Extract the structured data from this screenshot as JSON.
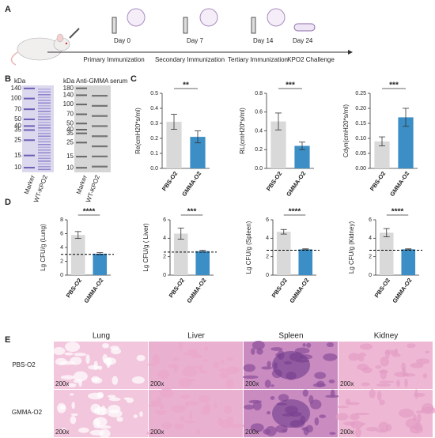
{
  "panel_labels": [
    "A",
    "B",
    "C",
    "D",
    "E"
  ],
  "timeline": {
    "days": [
      "Day 0",
      "Day 7",
      "Day 14",
      "Day 24"
    ],
    "stages": [
      "Primary Immunization",
      "Secondary Immunization",
      "Tertiary  Immunization",
      "KPO2 Challenge"
    ]
  },
  "gel": {
    "left_unit": "kDa",
    "left_markers": [
      140,
      100,
      70,
      50,
      40,
      35,
      25,
      15,
      10
    ],
    "right_title": "Anti-GMMA serum",
    "right_unit": "kDa",
    "right_markers": [
      180,
      140,
      100,
      70,
      50,
      40,
      35,
      25,
      15,
      10
    ],
    "lanes": [
      "Marker",
      "WT-KPO2"
    ]
  },
  "chart_data": [
    {
      "type": "bar",
      "ylabel": "Re(cmH20*s/ml)",
      "categories": [
        "PBS-O2",
        "GMMA-O2"
      ],
      "values": [
        0.31,
        0.21
      ],
      "errors": [
        0.05,
        0.04
      ],
      "colors": [
        "#d9d9d9",
        "#3b8ec6"
      ],
      "ylim": [
        0,
        0.5
      ],
      "yticks": [
        {
          "value": 0,
          "label": "0.0"
        },
        0.1,
        0.2,
        0.3,
        0.4,
        0.5
      ],
      "significance": "**"
    },
    {
      "type": "bar",
      "ylabel": "RL(cmH20*s/ml)",
      "categories": [
        "PBS-O2",
        "GMMA-O2"
      ],
      "values": [
        0.5,
        0.24
      ],
      "errors": [
        0.09,
        0.04
      ],
      "colors": [
        "#d9d9d9",
        "#3b8ec6"
      ],
      "ylim": [
        0,
        0.8
      ],
      "yticks": [
        {
          "value": 0,
          "label": "0.0"
        },
        0.2,
        0.4,
        0.6,
        0.8
      ],
      "significance": "***"
    },
    {
      "type": "bar",
      "ylabel": "Cdyn(cmH20*s/ml)",
      "categories": [
        "PBS-O2",
        "GMMA-O2"
      ],
      "values": [
        0.09,
        0.17
      ],
      "errors": [
        0.015,
        0.03
      ],
      "colors": [
        "#d9d9d9",
        "#3b8ec6"
      ],
      "ylim": [
        0,
        0.25
      ],
      "yticks": [
        {
          "value": 0,
          "label": "0.00"
        },
        0.05,
        {
          "value": 0.1,
          "label": "0.10"
        },
        0.15,
        {
          "value": 0.2,
          "label": "0.20"
        },
        0.25
      ],
      "significance": "***"
    },
    {
      "type": "bar",
      "ylabel": "Lg CFU/g (Lung)",
      "categories": [
        "PBS-O2",
        "GMMA-O2"
      ],
      "values": [
        5.8,
        3.1
      ],
      "errors": [
        0.5,
        0.15
      ],
      "colors": [
        "#d9d9d9",
        "#3b8ec6"
      ],
      "ylim": [
        0,
        8
      ],
      "yticks": [
        0,
        2,
        4,
        6,
        8
      ],
      "significance": "****",
      "threshold": 3
    },
    {
      "type": "bar",
      "ylabel": "Lg CFU/g ( Liver)",
      "categories": [
        "PBS-O2",
        "GMMA-O2"
      ],
      "values": [
        4.5,
        2.6
      ],
      "errors": [
        0.6,
        0.1
      ],
      "colors": [
        "#d9d9d9",
        "#3b8ec6"
      ],
      "ylim": [
        0,
        6
      ],
      "yticks": [
        0,
        2,
        4,
        6
      ],
      "significance": "***",
      "threshold": 2.5
    },
    {
      "type": "bar",
      "ylabel": "Lg CFU/g (Spleen)",
      "categories": [
        "PBS-O2",
        "GMMA-O2"
      ],
      "values": [
        4.7,
        2.8
      ],
      "errors": [
        0.25,
        0.05
      ],
      "colors": [
        "#d9d9d9",
        "#3b8ec6"
      ],
      "ylim": [
        0,
        6
      ],
      "yticks": [
        0,
        2,
        4,
        6
      ],
      "significance": "****",
      "threshold": 2.7
    },
    {
      "type": "bar",
      "ylabel": "Lg CFU/g (Kidney)",
      "categories": [
        "PBS-O2",
        "GMMA-O2"
      ],
      "values": [
        4.6,
        2.8
      ],
      "errors": [
        0.45,
        0.05
      ],
      "colors": [
        "#d9d9d9",
        "#3b8ec6"
      ],
      "ylim": [
        0,
        6
      ],
      "yticks": [
        0,
        2,
        4,
        6
      ],
      "significance": "****",
      "threshold": 2.7
    }
  ],
  "histology": {
    "columns": [
      "Lung",
      "Liver",
      "Spleen",
      "Kidney"
    ],
    "rows": [
      "PBS-O2",
      "GMMA-O2"
    ],
    "magnification": "200x"
  }
}
